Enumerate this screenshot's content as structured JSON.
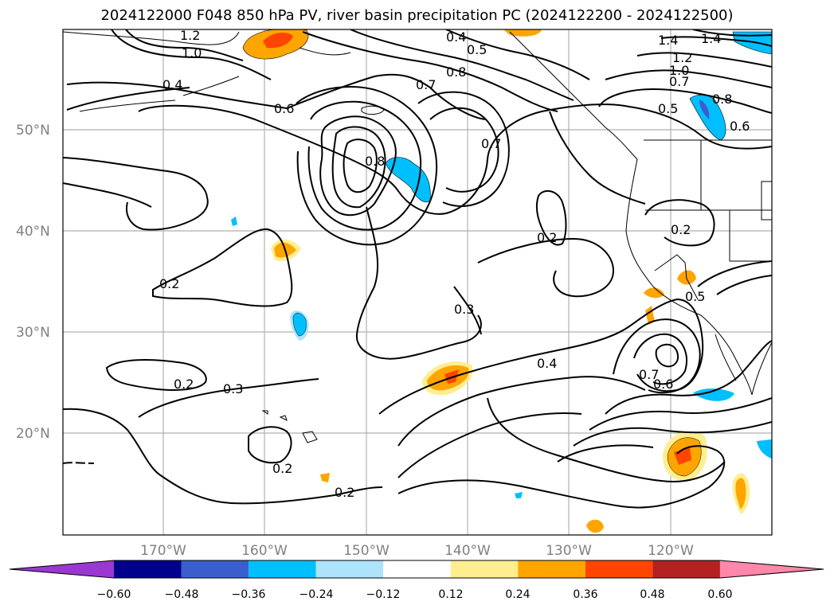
{
  "title": "2024122000 F048 850 hPa PV, river basin precipitation PC (2024122200 - 2024122500)",
  "map": {
    "lon_range": [
      -180,
      -110
    ],
    "lat_range": [
      10,
      60
    ],
    "lon_ticks": [
      "170°W",
      "160°W",
      "150°W",
      "140°W",
      "130°W",
      "120°W"
    ],
    "lat_ticks": [
      "50°N",
      "40°N",
      "30°N",
      "20°N"
    ],
    "grid": true,
    "contour_labels": [
      "1.2",
      "1.0",
      "0.4",
      "0.6",
      "0.4",
      "0.5",
      "0.7",
      "0.8",
      "1.4",
      "1.4",
      "1.2",
      "1.0",
      "0.7",
      "0.8",
      "0.5",
      "0.6",
      "0.8",
      "0.7",
      "0.2",
      "0.2",
      "0.2",
      "0.3",
      "0.2",
      "0.2",
      "0.3",
      "0.4",
      "0.7",
      "0.6",
      "0.2",
      "0.5"
    ]
  },
  "colorbar": {
    "colors": [
      "#9b38d1",
      "#00008b",
      "#3a5fcd",
      "#00bfff",
      "#ade4fb",
      "#ffffff",
      "#ffee90",
      "#ffa500",
      "#ff4500",
      "#b22222",
      "#ff88aa"
    ],
    "tick_labels": [
      "−0.60",
      "−0.48",
      "−0.36",
      "−0.24",
      "−0.12",
      "0.12",
      "0.24",
      "0.36",
      "0.48",
      "0.60"
    ]
  },
  "chart_data": {
    "type": "contour-map",
    "title": "2024122000 F048 850 hPa PV, river basin precipitation PC (2024122200 - 2024122500)",
    "colorbar_levels": [
      -0.6,
      -0.48,
      -0.36,
      -0.24,
      -0.12,
      0.12,
      0.24,
      0.36,
      0.48,
      0.6
    ],
    "contour_levels_labeled": [
      0.2,
      0.3,
      0.4,
      0.5,
      0.6,
      0.7,
      0.8,
      1.0,
      1.2,
      1.4
    ]
  }
}
